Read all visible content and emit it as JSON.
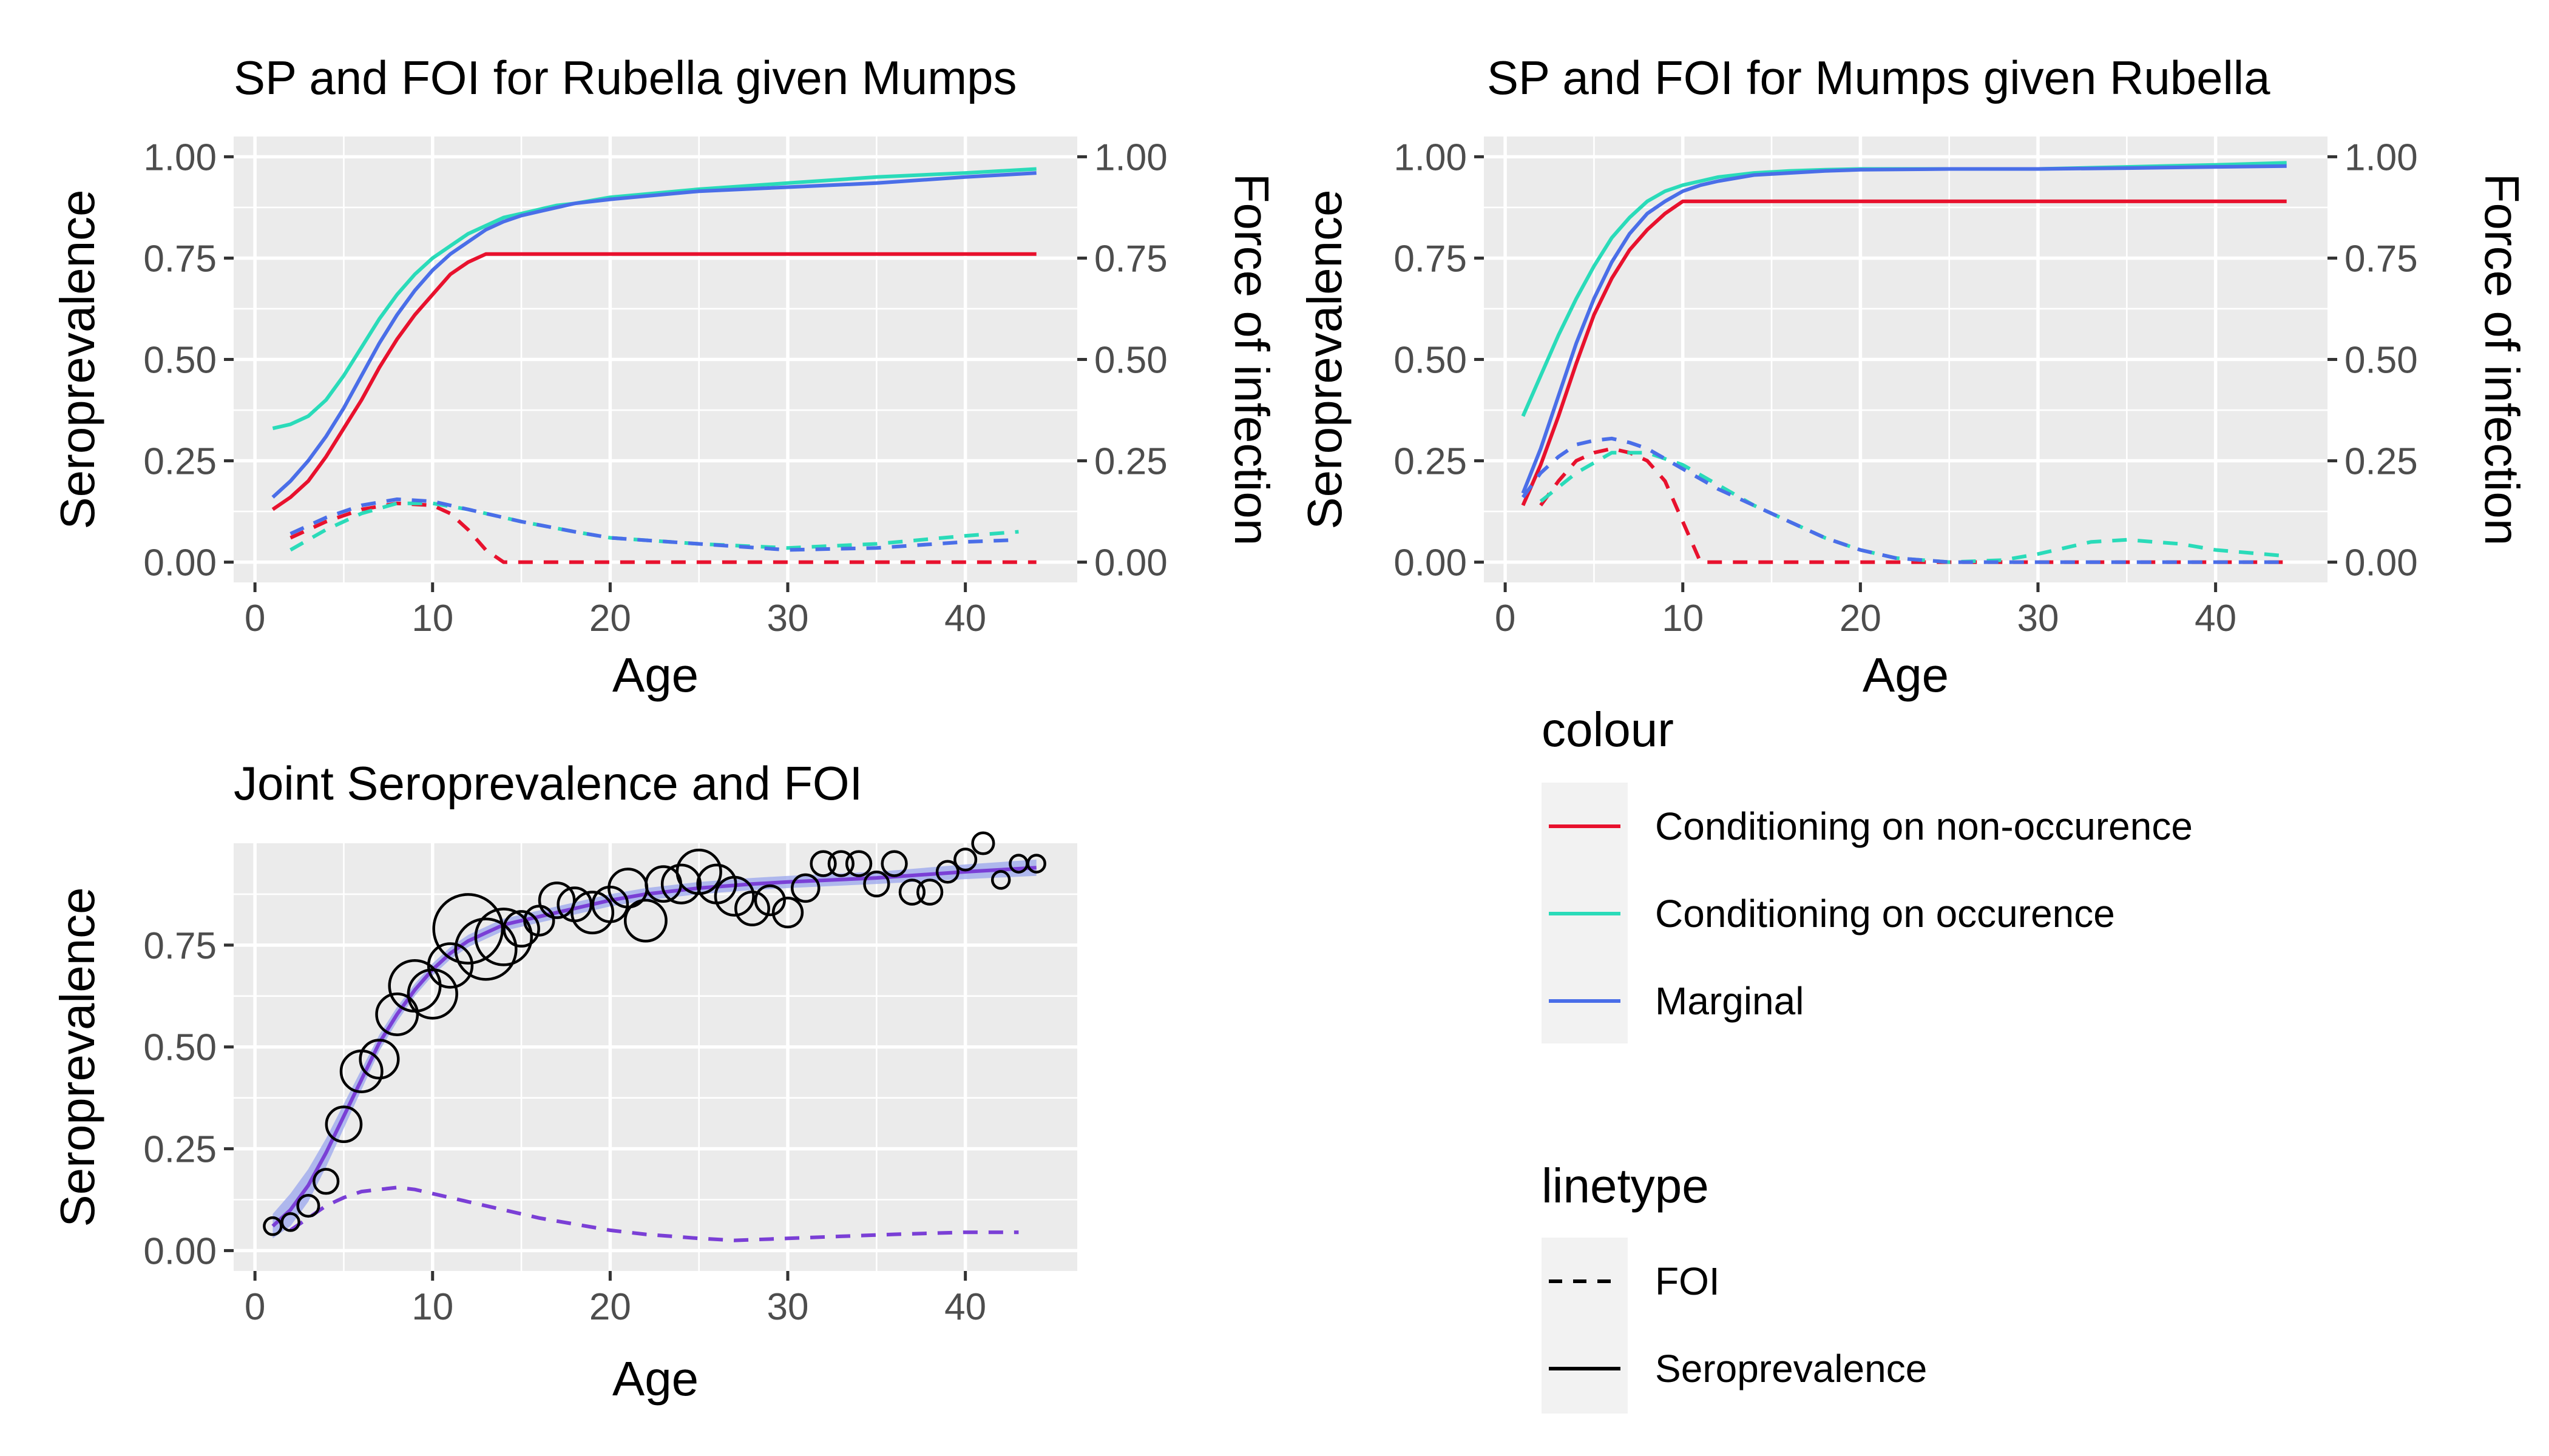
{
  "legend": {
    "colour": {
      "title": "colour",
      "items": [
        {
          "label": "Conditioning on non-occurence",
          "color": "#e8112d"
        },
        {
          "label": "Conditioning on occurence",
          "color": "#2adbb9"
        },
        {
          "label": "Marginal",
          "color": "#4a6ee8"
        }
      ]
    },
    "linetype": {
      "title": "linetype",
      "items": [
        {
          "label": "FOI",
          "dash": "dashed"
        },
        {
          "label": "Seroprevalence",
          "dash": "solid"
        }
      ]
    }
  },
  "chart_data": [
    {
      "type": "line",
      "title": "SP and FOI for Rubella given Mumps",
      "xlabel": "Age",
      "ylabel": "Seroprevalence",
      "y2label": "Force of infection",
      "xlim": [
        -1.2,
        46.3
      ],
      "ylim": [
        -0.05,
        1.05
      ],
      "xticks": [
        0,
        10,
        20,
        30,
        40
      ],
      "xtick_labels": [
        "0",
        "10",
        "20",
        "30",
        "40"
      ],
      "yticks": [
        0,
        0.25,
        0.5,
        0.75,
        1
      ],
      "ytick_labels": [
        "0.00",
        "0.25",
        "0.50",
        "0.75",
        "1.00"
      ],
      "y2ticks": [
        0,
        0.25,
        0.5,
        0.75,
        1
      ],
      "y2tick_labels": [
        "0.00",
        "0.25",
        "0.50",
        "0.75",
        "1.00"
      ],
      "series": [
        {
          "name": "Conditioning on non-occurence",
          "kind": "Seroprevalence",
          "color": "#e8112d",
          "dash": "solid",
          "x": [
            1,
            2,
            3,
            4,
            5,
            6,
            7,
            8,
            9,
            10,
            11,
            12,
            13,
            20,
            30,
            44
          ],
          "y": [
            0.13,
            0.16,
            0.2,
            0.26,
            0.33,
            0.4,
            0.48,
            0.55,
            0.61,
            0.66,
            0.71,
            0.74,
            0.76,
            0.76,
            0.76,
            0.76
          ]
        },
        {
          "name": "Conditioning on occurence",
          "kind": "Seroprevalence",
          "color": "#2adbb9",
          "dash": "solid",
          "x": [
            1,
            2,
            3,
            4,
            5,
            6,
            7,
            8,
            9,
            10,
            11,
            12,
            13,
            14,
            15,
            16,
            17,
            18,
            20,
            25,
            30,
            35,
            40,
            44
          ],
          "y": [
            0.33,
            0.34,
            0.36,
            0.4,
            0.46,
            0.53,
            0.6,
            0.66,
            0.71,
            0.75,
            0.78,
            0.81,
            0.83,
            0.85,
            0.86,
            0.87,
            0.88,
            0.885,
            0.9,
            0.92,
            0.935,
            0.95,
            0.96,
            0.97
          ]
        },
        {
          "name": "Marginal",
          "kind": "Seroprevalence",
          "color": "#4a6ee8",
          "dash": "solid",
          "x": [
            1,
            2,
            3,
            4,
            5,
            6,
            7,
            8,
            9,
            10,
            11,
            12,
            13,
            14,
            15,
            16,
            17,
            18,
            20,
            25,
            30,
            35,
            40,
            44
          ],
          "y": [
            0.16,
            0.2,
            0.25,
            0.31,
            0.38,
            0.46,
            0.54,
            0.61,
            0.67,
            0.72,
            0.76,
            0.79,
            0.82,
            0.84,
            0.855,
            0.865,
            0.875,
            0.885,
            0.895,
            0.915,
            0.925,
            0.935,
            0.95,
            0.96
          ]
        },
        {
          "name": "Conditioning on non-occurence",
          "kind": "FOI",
          "color": "#e8112d",
          "dash": "dashed",
          "x": [
            2,
            4,
            6,
            8,
            10,
            11,
            12,
            13,
            14,
            44
          ],
          "y": [
            0.06,
            0.1,
            0.13,
            0.145,
            0.14,
            0.12,
            0.08,
            0.03,
            0.0,
            0.0
          ]
        },
        {
          "name": "Conditioning on occurence",
          "kind": "FOI",
          "color": "#2adbb9",
          "dash": "dashed",
          "x": [
            2,
            4,
            6,
            8,
            10,
            12,
            15,
            18,
            20,
            25,
            30,
            35,
            40,
            43
          ],
          "y": [
            0.03,
            0.08,
            0.12,
            0.145,
            0.145,
            0.13,
            0.1,
            0.075,
            0.06,
            0.045,
            0.035,
            0.045,
            0.065,
            0.075
          ]
        },
        {
          "name": "Marginal",
          "kind": "FOI",
          "color": "#4a6ee8",
          "dash": "dashed",
          "x": [
            2,
            4,
            6,
            8,
            10,
            12,
            15,
            18,
            20,
            25,
            30,
            35,
            40,
            43
          ],
          "y": [
            0.07,
            0.11,
            0.14,
            0.155,
            0.15,
            0.13,
            0.1,
            0.075,
            0.06,
            0.045,
            0.03,
            0.035,
            0.05,
            0.055
          ]
        }
      ]
    },
    {
      "type": "line",
      "title": "SP and FOI for Mumps given Rubella",
      "xlabel": "Age",
      "ylabel": "Seroprevalence",
      "y2label": "Force of infection",
      "xlim": [
        -1.2,
        46.3
      ],
      "ylim": [
        -0.05,
        1.05
      ],
      "xticks": [
        0,
        10,
        20,
        30,
        40
      ],
      "xtick_labels": [
        "0",
        "10",
        "20",
        "30",
        "40"
      ],
      "yticks": [
        0,
        0.25,
        0.5,
        0.75,
        1
      ],
      "ytick_labels": [
        "0.00",
        "0.25",
        "0.50",
        "0.75",
        "1.00"
      ],
      "y2ticks": [
        0,
        0.25,
        0.5,
        0.75,
        1
      ],
      "y2tick_labels": [
        "0.00",
        "0.25",
        "0.50",
        "0.75",
        "1.00"
      ],
      "series": [
        {
          "name": "Conditioning on non-occurence",
          "kind": "Seroprevalence",
          "color": "#e8112d",
          "dash": "solid",
          "x": [
            1,
            2,
            3,
            4,
            5,
            6,
            7,
            8,
            9,
            10,
            15,
            20,
            30,
            44
          ],
          "y": [
            0.14,
            0.24,
            0.36,
            0.49,
            0.61,
            0.7,
            0.77,
            0.82,
            0.86,
            0.89,
            0.89,
            0.89,
            0.89,
            0.89
          ]
        },
        {
          "name": "Conditioning on occurence",
          "kind": "Seroprevalence",
          "color": "#2adbb9",
          "dash": "solid",
          "x": [
            1,
            2,
            3,
            4,
            5,
            6,
            7,
            8,
            9,
            10,
            11,
            12,
            14,
            16,
            18,
            20,
            25,
            30,
            35,
            40,
            44
          ],
          "y": [
            0.36,
            0.46,
            0.56,
            0.65,
            0.73,
            0.8,
            0.85,
            0.89,
            0.915,
            0.93,
            0.94,
            0.95,
            0.96,
            0.965,
            0.968,
            0.97,
            0.97,
            0.97,
            0.975,
            0.98,
            0.985
          ]
        },
        {
          "name": "Marginal",
          "kind": "Seroprevalence",
          "color": "#4a6ee8",
          "dash": "solid",
          "x": [
            1,
            2,
            3,
            4,
            5,
            6,
            7,
            8,
            9,
            10,
            11,
            12,
            14,
            16,
            18,
            20,
            25,
            30,
            35,
            40,
            44
          ],
          "y": [
            0.17,
            0.28,
            0.41,
            0.54,
            0.65,
            0.74,
            0.81,
            0.86,
            0.89,
            0.915,
            0.93,
            0.94,
            0.955,
            0.96,
            0.965,
            0.968,
            0.97,
            0.97,
            0.972,
            0.975,
            0.977
          ]
        },
        {
          "name": "Conditioning on non-occurence",
          "kind": "FOI",
          "color": "#e8112d",
          "dash": "dashed",
          "x": [
            2,
            3,
            4,
            5,
            6,
            7,
            8,
            9,
            10,
            11,
            12,
            20,
            30,
            44
          ],
          "y": [
            0.14,
            0.2,
            0.25,
            0.27,
            0.28,
            0.27,
            0.25,
            0.2,
            0.1,
            0.0,
            0.0,
            0.0,
            0.0,
            0.0
          ]
        },
        {
          "name": "Conditioning on occurence",
          "kind": "FOI",
          "color": "#2adbb9",
          "dash": "dashed",
          "x": [
            2,
            4,
            6,
            8,
            10,
            12,
            14,
            16,
            18,
            20,
            22,
            25,
            28,
            30,
            33,
            35,
            38,
            40,
            44
          ],
          "y": [
            0.15,
            0.22,
            0.27,
            0.27,
            0.24,
            0.19,
            0.14,
            0.1,
            0.06,
            0.03,
            0.01,
            0.0,
            0.005,
            0.02,
            0.05,
            0.055,
            0.045,
            0.03,
            0.015
          ]
        },
        {
          "name": "Marginal",
          "kind": "FOI",
          "color": "#4a6ee8",
          "dash": "dashed",
          "x": [
            1,
            2,
            3,
            4,
            5,
            6,
            7,
            8,
            9,
            10,
            12,
            14,
            16,
            18,
            20,
            22,
            25,
            28,
            30,
            35,
            40,
            44
          ],
          "y": [
            0.16,
            0.22,
            0.26,
            0.29,
            0.3,
            0.305,
            0.295,
            0.28,
            0.255,
            0.23,
            0.18,
            0.14,
            0.1,
            0.06,
            0.03,
            0.01,
            0.0,
            0.0,
            0.0,
            0.0,
            0.0,
            0.0
          ]
        }
      ]
    },
    {
      "type": "scatter",
      "title": "Joint Seroprevalence and FOI",
      "xlabel": "Age",
      "ylabel": "Seroprevalence",
      "xlim": [
        -1.2,
        46.3
      ],
      "ylim": [
        -0.05,
        1.0
      ],
      "xticks": [
        0,
        10,
        20,
        30,
        40
      ],
      "xtick_labels": [
        "0",
        "10",
        "20",
        "30",
        "40"
      ],
      "yticks": [
        0,
        0.25,
        0.5,
        0.75
      ],
      "ytick_labels": [
        "0.00",
        "0.25",
        "0.50",
        "0.75"
      ],
      "band_color": "#9aa6ee",
      "line_color": "#7a3fd6",
      "seroprevalence_fit": {
        "x": [
          1,
          2,
          3,
          4,
          5,
          6,
          7,
          8,
          9,
          10,
          11,
          12,
          13,
          14,
          15,
          16,
          18,
          20,
          22,
          25,
          28,
          30,
          35,
          40,
          44
        ],
        "y": [
          0.06,
          0.1,
          0.16,
          0.24,
          0.33,
          0.42,
          0.51,
          0.58,
          0.64,
          0.69,
          0.73,
          0.76,
          0.78,
          0.8,
          0.81,
          0.82,
          0.84,
          0.86,
          0.875,
          0.89,
          0.9,
          0.905,
          0.915,
          0.93,
          0.94
        ],
        "band": [
          0.03,
          0.04,
          0.04,
          0.035,
          0.03,
          0.025,
          0.02,
          0.018,
          0.015,
          0.015,
          0.015,
          0.015,
          0.015,
          0.015,
          0.015,
          0.015,
          0.015,
          0.015,
          0.015,
          0.015,
          0.015,
          0.015,
          0.015,
          0.018,
          0.02
        ]
      },
      "foi_fit": {
        "x": [
          2,
          3,
          4,
          5,
          6,
          7,
          8,
          9,
          10,
          12,
          14,
          16,
          18,
          20,
          22,
          25,
          27,
          30,
          33,
          36,
          40,
          43
        ],
        "y": [
          0.05,
          0.08,
          0.11,
          0.13,
          0.145,
          0.15,
          0.155,
          0.15,
          0.14,
          0.12,
          0.1,
          0.08,
          0.065,
          0.05,
          0.04,
          0.03,
          0.025,
          0.03,
          0.035,
          0.04,
          0.045,
          0.045
        ]
      },
      "points": [
        {
          "x": 1,
          "y": 0.06,
          "n": 1
        },
        {
          "x": 2,
          "y": 0.07,
          "n": 1
        },
        {
          "x": 3,
          "y": 0.11,
          "n": 2
        },
        {
          "x": 4,
          "y": 0.17,
          "n": 3
        },
        {
          "x": 5,
          "y": 0.31,
          "n": 8
        },
        {
          "x": 6,
          "y": 0.44,
          "n": 12
        },
        {
          "x": 7,
          "y": 0.47,
          "n": 10
        },
        {
          "x": 8,
          "y": 0.58,
          "n": 12
        },
        {
          "x": 9,
          "y": 0.65,
          "n": 20
        },
        {
          "x": 10,
          "y": 0.63,
          "n": 18
        },
        {
          "x": 11,
          "y": 0.7,
          "n": 14
        },
        {
          "x": 12,
          "y": 0.79,
          "n": 40
        },
        {
          "x": 13,
          "y": 0.74,
          "n": 30
        },
        {
          "x": 14,
          "y": 0.77,
          "n": 25
        },
        {
          "x": 15,
          "y": 0.79,
          "n": 8
        },
        {
          "x": 16,
          "y": 0.81,
          "n": 5
        },
        {
          "x": 17,
          "y": 0.86,
          "n": 8
        },
        {
          "x": 18,
          "y": 0.85,
          "n": 7
        },
        {
          "x": 19,
          "y": 0.83,
          "n": 12
        },
        {
          "x": 20,
          "y": 0.85,
          "n": 8
        },
        {
          "x": 21,
          "y": 0.89,
          "n": 10
        },
        {
          "x": 22,
          "y": 0.81,
          "n": 12
        },
        {
          "x": 23,
          "y": 0.9,
          "n": 8
        },
        {
          "x": 24,
          "y": 0.9,
          "n": 10
        },
        {
          "x": 25,
          "y": 0.93,
          "n": 14
        },
        {
          "x": 26,
          "y": 0.9,
          "n": 10
        },
        {
          "x": 27,
          "y": 0.87,
          "n": 10
        },
        {
          "x": 28,
          "y": 0.84,
          "n": 7
        },
        {
          "x": 29,
          "y": 0.86,
          "n": 5
        },
        {
          "x": 30,
          "y": 0.83,
          "n": 5
        },
        {
          "x": 31,
          "y": 0.89,
          "n": 4
        },
        {
          "x": 32,
          "y": 0.95,
          "n": 3
        },
        {
          "x": 33,
          "y": 0.95,
          "n": 3
        },
        {
          "x": 34,
          "y": 0.95,
          "n": 3
        },
        {
          "x": 35,
          "y": 0.9,
          "n": 3
        },
        {
          "x": 36,
          "y": 0.95,
          "n": 3
        },
        {
          "x": 37,
          "y": 0.88,
          "n": 3
        },
        {
          "x": 38,
          "y": 0.88,
          "n": 3
        },
        {
          "x": 39,
          "y": 0.93,
          "n": 2
        },
        {
          "x": 40,
          "y": 0.96,
          "n": 2
        },
        {
          "x": 41,
          "y": 1.0,
          "n": 2
        },
        {
          "x": 42,
          "y": 0.91,
          "n": 1
        },
        {
          "x": 43,
          "y": 0.95,
          "n": 1
        },
        {
          "x": 44,
          "y": 0.95,
          "n": 1
        }
      ]
    }
  ]
}
